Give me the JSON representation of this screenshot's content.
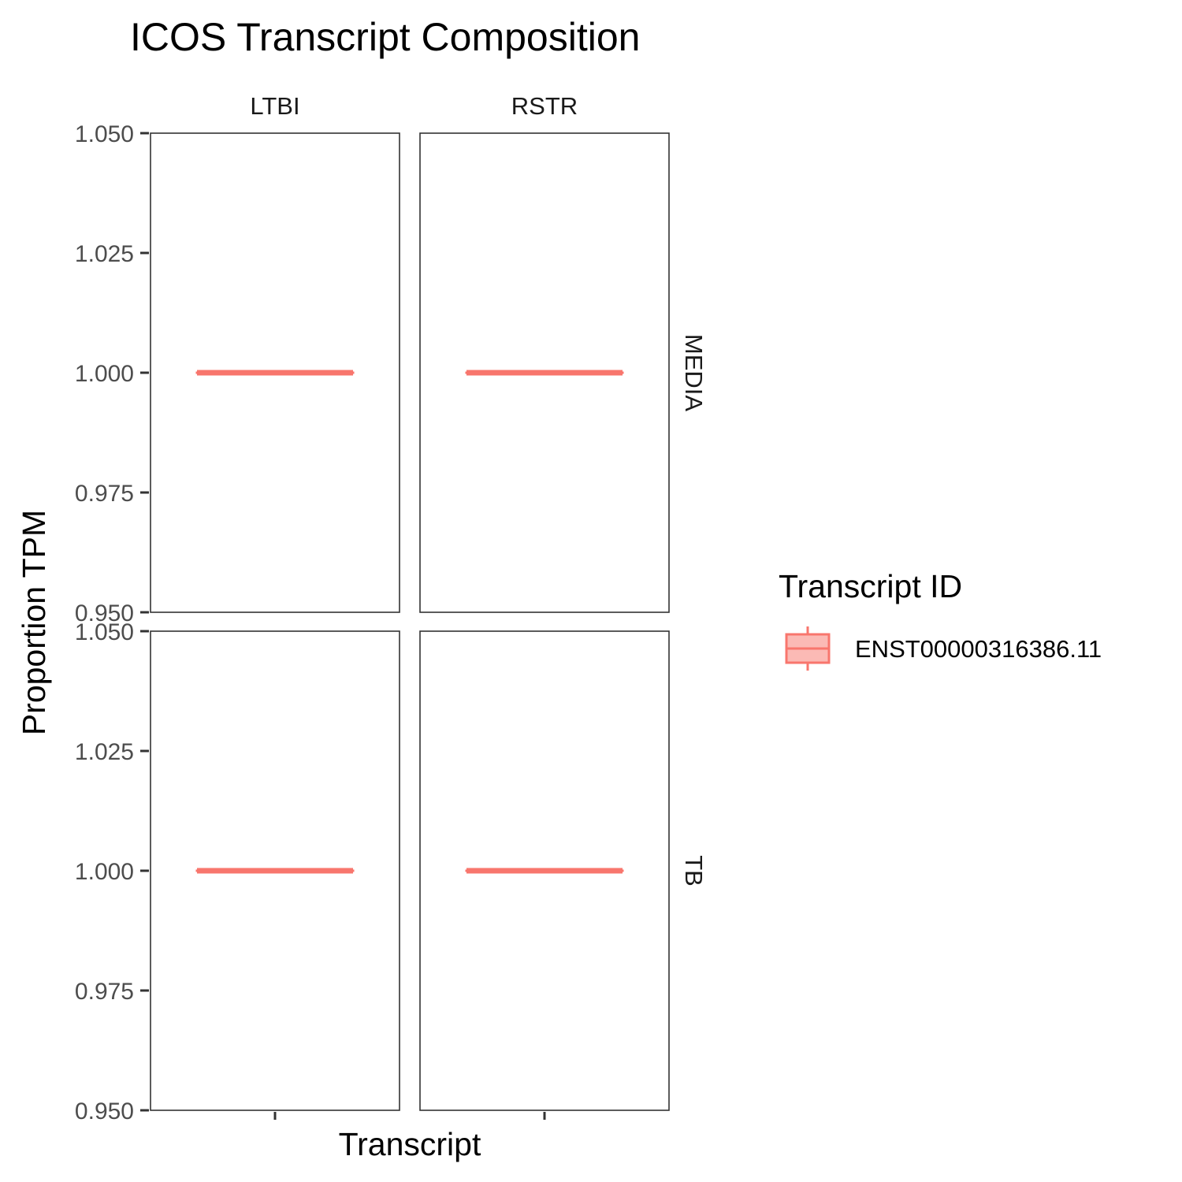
{
  "chart_data": {
    "type": "box",
    "title": "ICOS Transcript Composition",
    "xlabel": "Transcript",
    "ylabel": "Proportion TPM",
    "ylim": [
      0.95,
      1.05
    ],
    "yticks": [
      "0.950",
      "0.975",
      "1.000",
      "1.025",
      "1.050"
    ],
    "facet_columns": [
      "LTBI",
      "RSTR"
    ],
    "facet_rows": [
      "MEDIA",
      "TB"
    ],
    "legend": {
      "title": "Transcript ID",
      "position": "right",
      "entries": [
        {
          "label": "ENST00000316386.11",
          "color": "#F8766D",
          "fill": "#FBBAB5"
        }
      ]
    },
    "series": [
      {
        "name": "ENST00000316386.11",
        "color": "#F8766D",
        "panels": [
          {
            "row": "MEDIA",
            "col": "LTBI",
            "min": 1.0,
            "q1": 1.0,
            "median": 1.0,
            "q3": 1.0,
            "max": 1.0
          },
          {
            "row": "MEDIA",
            "col": "RSTR",
            "min": 1.0,
            "q1": 1.0,
            "median": 1.0,
            "q3": 1.0,
            "max": 1.0
          },
          {
            "row": "TB",
            "col": "LTBI",
            "min": 1.0,
            "q1": 1.0,
            "median": 1.0,
            "q3": 1.0,
            "max": 1.0
          },
          {
            "row": "TB",
            "col": "RSTR",
            "min": 1.0,
            "q1": 1.0,
            "median": 1.0,
            "q3": 1.0,
            "max": 1.0
          }
        ]
      }
    ],
    "grid": false
  }
}
